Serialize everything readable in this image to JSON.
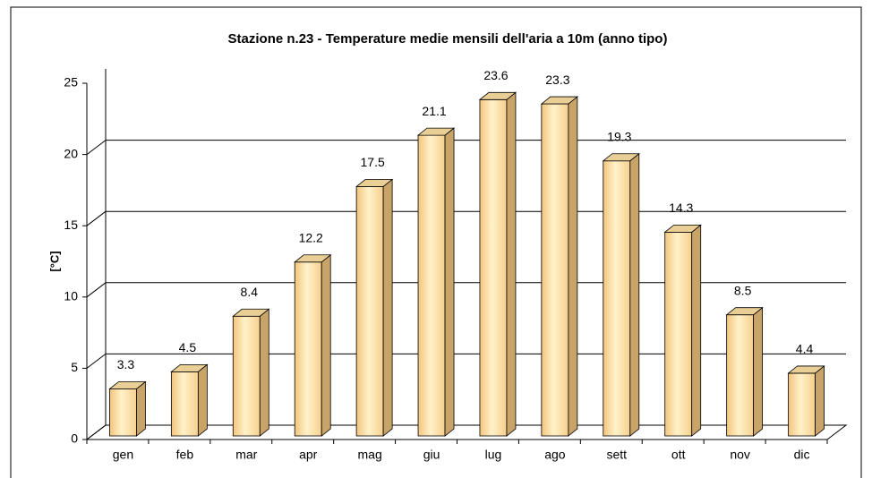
{
  "chart_data": {
    "type": "bar3d",
    "title": "Stazione n.23 - Temperature medie mensili dell'aria a 10m (anno tipo)",
    "y_label": "[°C]",
    "categories": [
      "gen",
      "feb",
      "mar",
      "apr",
      "mag",
      "giu",
      "lug",
      "ago",
      "sett",
      "ott",
      "nov",
      "dic"
    ],
    "values": [
      3.3,
      4.5,
      8.4,
      12.2,
      17.5,
      21.1,
      23.6,
      23.3,
      19.3,
      14.3,
      8.5,
      4.4
    ],
    "color": "#fbd89a",
    "ylim": [
      0,
      25
    ],
    "yticks": [
      0,
      5,
      10,
      15,
      20,
      25
    ],
    "grid": true
  }
}
